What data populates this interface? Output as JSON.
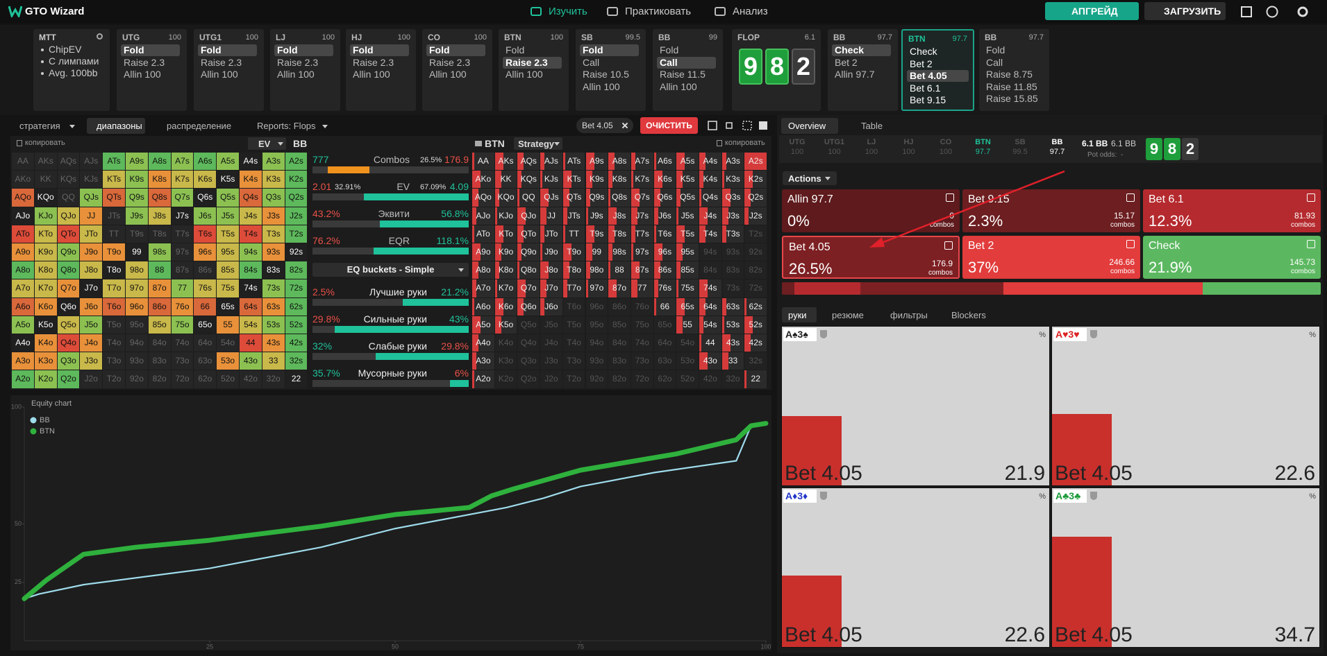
{
  "nav": {
    "brand": "GTO Wizard",
    "tabs": [
      "Изучить",
      "Практиковать",
      "Анализ"
    ],
    "active_tab": 0,
    "buttons": [
      "АПГРЕЙД",
      "ЗАГРУЗИТЬ"
    ]
  },
  "game": {
    "title": "MTT",
    "lines": [
      "ChipEV",
      "С лимпами",
      "Avg. 100bb"
    ]
  },
  "preflop": [
    {
      "name": "UTG",
      "stack": 100,
      "actions": [
        "Fold",
        "Raise 2.3",
        "Allin 100"
      ],
      "selected": 0
    },
    {
      "name": "UTG1",
      "stack": 100,
      "actions": [
        "Fold",
        "Raise 2.3",
        "Allin 100"
      ],
      "selected": 0
    },
    {
      "name": "LJ",
      "stack": 100,
      "actions": [
        "Fold",
        "Raise 2.3",
        "Allin 100"
      ],
      "selected": 0
    },
    {
      "name": "HJ",
      "stack": 100,
      "actions": [
        "Fold",
        "Raise 2.3",
        "Allin 100"
      ],
      "selected": 0
    },
    {
      "name": "CO",
      "stack": 100,
      "actions": [
        "Fold",
        "Raise 2.3",
        "Allin 100"
      ],
      "selected": 0
    },
    {
      "name": "BTN",
      "stack": 100,
      "actions": [
        "Fold",
        "Raise 2.3",
        "Allin 100"
      ],
      "selected": 1
    },
    {
      "name": "SB",
      "stack": 99.5,
      "actions": [
        "Fold",
        "Call",
        "Raise 10.5",
        "Allin 100"
      ],
      "selected": 0
    },
    {
      "name": "BB",
      "stack": 99,
      "actions": [
        "Fold",
        "Call",
        "Raise 11.5",
        "Allin 100"
      ],
      "selected": 1
    }
  ],
  "flop": {
    "label": "FLOP",
    "pot": 6.1,
    "cards": [
      "9",
      "8",
      "2"
    ]
  },
  "postflop": [
    {
      "name": "BB",
      "stack": 97.7,
      "actions": [
        "Check",
        "Bet 2",
        "Allin 97.7"
      ],
      "selected": 0
    },
    {
      "name": "BTN",
      "stack": 97.7,
      "actions": [
        "Check",
        "Bet 2",
        "Bet 4.05",
        "Bet 6.1",
        "Bet 9.15"
      ],
      "selected": 2,
      "active": true
    },
    {
      "name": "BB",
      "stack": 97.7,
      "actions": [
        "Fold",
        "Call",
        "Raise 8.75",
        "Raise 11.85",
        "Raise 15.85"
      ]
    }
  ],
  "toolbar": {
    "tabs": [
      "стратегия",
      "диапазоны",
      "распределение",
      "Reports: Flops"
    ],
    "active_tab": 1,
    "filter_chip": "Bet 4.05",
    "clear": "ОЧИСТИТЬ"
  },
  "range_left": {
    "copy": "копировать",
    "metric": "EV",
    "player": "BB"
  },
  "stats": [
    {
      "left": "777",
      "label": "Combos",
      "right_pct": "26.5%",
      "right": "176.9"
    },
    {
      "left": "2.01",
      "left_pct": "32.91%",
      "label": "EV",
      "right_pct": "67.09%",
      "right": "4.09"
    },
    {
      "left": "43.2%",
      "label": "Эквити",
      "right": "56.8%"
    },
    {
      "left": "76.2%",
      "label": "EQR",
      "right": "118.1%"
    }
  ],
  "buckets_menu": "EQ buckets - Simple",
  "buckets": [
    {
      "left": "2.5%",
      "label": "Лучшие руки",
      "right": "21.2%"
    },
    {
      "left": "29.8%",
      "label": "Сильные руки",
      "right": "43%"
    },
    {
      "left": "32%",
      "label": "Слабые руки",
      "right": "29.8%"
    },
    {
      "left": "35.7%",
      "label": "Мусорные руки",
      "right": "6%"
    }
  ],
  "range_right": {
    "player": "BTN",
    "view": "Strategy",
    "copy": "копировать"
  },
  "hands": [
    [
      "AA",
      "AKs",
      "AQs",
      "AJs",
      "ATs",
      "A9s",
      "A8s",
      "A7s",
      "A6s",
      "A5s",
      "A4s",
      "A3s",
      "A2s"
    ],
    [
      "AKo",
      "KK",
      "KQs",
      "KJs",
      "KTs",
      "K9s",
      "K8s",
      "K7s",
      "K6s",
      "K5s",
      "K4s",
      "K3s",
      "K2s"
    ],
    [
      "AQo",
      "KQo",
      "QQ",
      "QJs",
      "QTs",
      "Q9s",
      "Q8s",
      "Q7s",
      "Q6s",
      "Q5s",
      "Q4s",
      "Q3s",
      "Q2s"
    ],
    [
      "AJo",
      "KJo",
      "QJo",
      "JJ",
      "JTs",
      "J9s",
      "J8s",
      "J7s",
      "J6s",
      "J5s",
      "J4s",
      "J3s",
      "J2s"
    ],
    [
      "ATo",
      "KTo",
      "QTo",
      "JTo",
      "TT",
      "T9s",
      "T8s",
      "T7s",
      "T6s",
      "T5s",
      "T4s",
      "T3s",
      "T2s"
    ],
    [
      "A9o",
      "K9o",
      "Q9o",
      "J9o",
      "T9o",
      "99",
      "98s",
      "97s",
      "96s",
      "95s",
      "94s",
      "93s",
      "92s"
    ],
    [
      "A8o",
      "K8o",
      "Q8o",
      "J8o",
      "T8o",
      "98o",
      "88",
      "87s",
      "86s",
      "85s",
      "84s",
      "83s",
      "82s"
    ],
    [
      "A7o",
      "K7o",
      "Q7o",
      "J7o",
      "T7o",
      "97o",
      "87o",
      "77",
      "76s",
      "75s",
      "74s",
      "73s",
      "72s"
    ],
    [
      "A6o",
      "K6o",
      "Q6o",
      "J6o",
      "T6o",
      "96o",
      "86o",
      "76o",
      "66",
      "65s",
      "64s",
      "63s",
      "62s"
    ],
    [
      "A5o",
      "K5o",
      "Q5o",
      "J5o",
      "T5o",
      "95o",
      "85o",
      "75o",
      "65o",
      "55",
      "54s",
      "53s",
      "52s"
    ],
    [
      "A4o",
      "K4o",
      "Q4o",
      "J4o",
      "T4o",
      "94o",
      "84o",
      "74o",
      "64o",
      "54o",
      "44",
      "43s",
      "42s"
    ],
    [
      "A3o",
      "K3o",
      "Q3o",
      "J3o",
      "T3o",
      "93o",
      "83o",
      "73o",
      "63o",
      "53o",
      "43o",
      "33",
      "32s"
    ],
    [
      "A2o",
      "K2o",
      "Q2o",
      "J2o",
      "T2o",
      "92o",
      "82o",
      "72o",
      "62o",
      "52o",
      "42o",
      "32o",
      "22"
    ]
  ],
  "equity_chart": {
    "title": "Equity chart",
    "xlim": [
      0,
      100
    ],
    "ylim": [
      0,
      100
    ],
    "xticks": [
      25,
      50,
      75,
      100
    ],
    "yticks": [
      25,
      50,
      100
    ],
    "series": [
      {
        "name": "BB",
        "color": "#9fdcec",
        "x": [
          0,
          2,
          8,
          25,
          40,
          50,
          65,
          70,
          75,
          85,
          96,
          98,
          100
        ],
        "y": [
          18,
          20,
          24,
          31,
          40,
          48,
          57,
          61,
          66,
          72,
          77,
          92,
          93
        ]
      },
      {
        "name": "BTN",
        "color": "#2fb13d",
        "x": [
          0,
          3,
          8,
          15,
          25,
          40,
          50,
          60,
          63,
          66,
          75,
          88,
          96,
          98,
          100
        ],
        "y": [
          18,
          26,
          37,
          40,
          43,
          49,
          54,
          57,
          62,
          65,
          73,
          80,
          86,
          92,
          93
        ]
      }
    ]
  },
  "overview": {
    "tabs": [
      "Overview",
      "Table"
    ],
    "active_tab": 0,
    "positions": [
      {
        "name": "UTG",
        "stack": 100
      },
      {
        "name": "UTG1",
        "stack": 100
      },
      {
        "name": "LJ",
        "stack": 100
      },
      {
        "name": "HJ",
        "stack": 100
      },
      {
        "name": "CO",
        "stack": 100
      },
      {
        "name": "BTN",
        "stack": 97.7
      },
      {
        "name": "SB",
        "stack": 99.5
      },
      {
        "name": "BB",
        "stack": 97.7
      }
    ],
    "pot": "6.1 BB",
    "pot2": "6.1 BB",
    "pot_odds_label": "Pot odds:",
    "pot_odds": "-"
  },
  "actions_panel": {
    "label": "Actions",
    "combos_label": "combos",
    "items": [
      {
        "name": "Allin 97.7",
        "pct": "0%",
        "combos": "0"
      },
      {
        "name": "Bet 9.15",
        "pct": "2.3%",
        "combos": "15.17"
      },
      {
        "name": "Bet 6.1",
        "pct": "12.3%",
        "combos": "81.93"
      },
      {
        "name": "Bet 4.05",
        "pct": "26.5%",
        "combos": "176.9"
      },
      {
        "name": "Bet 2",
        "pct": "37%",
        "combos": "246.66"
      },
      {
        "name": "Check",
        "pct": "21.9%",
        "combos": "145.73"
      }
    ]
  },
  "hand_tabs": {
    "tabs": [
      "руки",
      "резюме",
      "фильтры",
      "Blockers"
    ],
    "active_tab": 0
  },
  "hand_cards": {
    "percent_sign": "%",
    "cards": [
      {
        "hand": "A♠3♠",
        "action": "Bet 4.05",
        "value": 21.9
      },
      {
        "hand": "A♥3♥",
        "action": "Bet 4.05",
        "value": 22.6
      },
      {
        "hand": "A♦3♦",
        "action": "Bet 4.05",
        "value": 22.6
      },
      {
        "hand": "A♣3♣",
        "action": "Bet 4.05",
        "value": 34.7
      }
    ]
  }
}
